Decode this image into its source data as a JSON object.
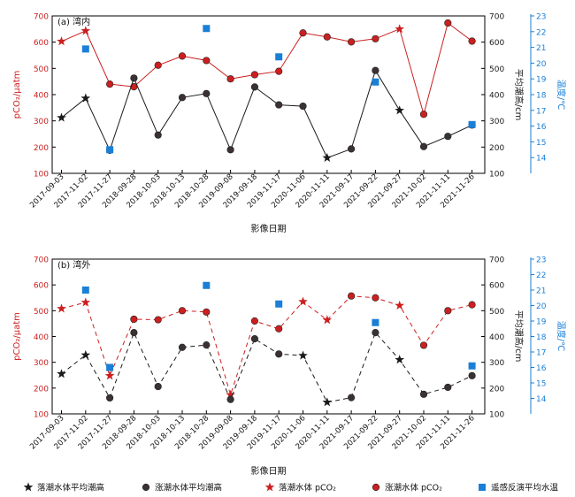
{
  "figure": {
    "colors": {
      "red": "#cc1f1f",
      "black": "#1a1a1a",
      "blue": "#1a7fd6",
      "dark_marker": "#3a3232",
      "axis": "#000000"
    },
    "legend": [
      {
        "key": "star_black",
        "label": "落潮水体平均潮高",
        "marker": "star",
        "color": "#1a1a1a"
      },
      {
        "key": "dot_black",
        "label": "涨潮水体平均潮高",
        "marker": "circle",
        "color": "#3a3232"
      },
      {
        "key": "star_red",
        "label": "落潮水体 pCO₂",
        "marker": "star",
        "color": "#cc1f1f"
      },
      {
        "key": "dot_red",
        "label": "涨潮水体 pCO₂",
        "marker": "circle",
        "color": "#cc1f1f"
      },
      {
        "key": "square_blue",
        "label": "遥感反演平均水温",
        "marker": "square",
        "color": "#1a7fd6"
      }
    ]
  },
  "chart_data": [
    {
      "type": "line",
      "panel_label": "(a) 湾内",
      "xlabel": "影像日期",
      "ylabel_left": "pCO₂/μatm",
      "ylabel_right1": "平均潮高/cm",
      "ylabel_right2": "温度/℃",
      "line_style": "solid",
      "categories": [
        "2017-09-03",
        "2017-11-02",
        "2017-11-27",
        "2018-09-28",
        "2018-10-03",
        "2018-10-13",
        "2018-10-28",
        "2019-09-08",
        "2019-09-18",
        "2019-11-17",
        "2020-11-06",
        "2020-11-11",
        "2021-09-17",
        "2021-09-22",
        "2021-09-27",
        "2021-10-02",
        "2021-11-11",
        "2021-11-26"
      ],
      "ylim_left": [
        100,
        700
      ],
      "yticks_left": [
        100,
        200,
        300,
        400,
        500,
        600,
        700
      ],
      "ylim_right1": [
        100,
        700
      ],
      "yticks_right1": [
        100,
        200,
        300,
        400,
        500,
        600,
        700
      ],
      "ylim_right2": [
        13,
        23
      ],
      "yticks_right2": [
        14,
        15,
        16,
        17,
        18,
        19,
        20,
        21,
        22,
        23
      ],
      "series": [
        {
          "key": "pco2",
          "name": "pCO₂",
          "axis": "left",
          "color": "#cc1f1f",
          "values": [
            603,
            643,
            440,
            430,
            512,
            547,
            530,
            460,
            476,
            489,
            635,
            620,
            601,
            613,
            650,
            325,
            673,
            604
          ],
          "markers": [
            "star",
            "star",
            "dot",
            "dot",
            "dot",
            "dot",
            "dot",
            "dot",
            "dot",
            "dot",
            "dot",
            "dot",
            "dot",
            "dot",
            "star",
            "dot",
            "dot",
            "dot"
          ]
        },
        {
          "key": "tide",
          "name": "平均潮高",
          "axis": "right1",
          "color": "#1a1a1a",
          "values": [
            312,
            386,
            188,
            463,
            246,
            389,
            404,
            190,
            429,
            361,
            356,
            159,
            193,
            492,
            340,
            202,
            241,
            284
          ],
          "markers": [
            "star",
            "star",
            "dot",
            "dot",
            "dot",
            "dot",
            "dot",
            "dot",
            "dot",
            "dot",
            "dot",
            "star",
            "dot",
            "dot",
            "star",
            "dot",
            "dot",
            "dot"
          ]
        },
        {
          "key": "temp",
          "name": "水温",
          "axis": "right2",
          "color": "#1a7fd6",
          "points": [
            {
              "x": "2017-11-02",
              "y": 20.9
            },
            {
              "x": "2017-11-27",
              "y": 14.5
            },
            {
              "x": "2018-10-28",
              "y": 22.2
            },
            {
              "x": "2019-11-17",
              "y": 20.4
            },
            {
              "x": "2021-09-22",
              "y": 18.8
            },
            {
              "x": "2021-11-26",
              "y": 16.1
            }
          ]
        }
      ]
    },
    {
      "type": "line",
      "panel_label": "(b) 湾外",
      "xlabel": "影像日期",
      "ylabel_left": "pCO₂/μatm",
      "ylabel_right1": "平均潮高/cm",
      "ylabel_right2": "温度/℃",
      "line_style": "dashed",
      "categories": [
        "2017-09-03",
        "2017-11-02",
        "2017-11-27",
        "2018-09-28",
        "2018-10-03",
        "2018-10-13",
        "2018-10-28",
        "2019-09-08",
        "2019-09-18",
        "2019-11-17",
        "2020-11-06",
        "2020-11-11",
        "2021-09-17",
        "2021-09-22",
        "2021-09-27",
        "2021-10-02",
        "2021-11-11",
        "2021-11-26"
      ],
      "ylim_left": [
        100,
        700
      ],
      "yticks_left": [
        100,
        200,
        300,
        400,
        500,
        600,
        700
      ],
      "ylim_right1": [
        100,
        700
      ],
      "yticks_right1": [
        100,
        200,
        300,
        400,
        500,
        600,
        700
      ],
      "ylim_right2": [
        13,
        23
      ],
      "yticks_right2": [
        14,
        15,
        16,
        17,
        18,
        19,
        20,
        21,
        22,
        23
      ],
      "series": [
        {
          "key": "pco2",
          "name": "pCO₂",
          "axis": "left",
          "color": "#cc1f1f",
          "values": [
            508,
            532,
            248,
            467,
            465,
            500,
            495,
            174,
            460,
            430,
            535,
            464,
            557,
            550,
            520,
            366,
            500,
            523
          ],
          "markers": [
            "star",
            "star",
            "star",
            "dot",
            "dot",
            "dot",
            "dot",
            "star",
            "dot",
            "dot",
            "star",
            "star",
            "dot",
            "dot",
            "star",
            "dot",
            "dot",
            "dot"
          ]
        },
        {
          "key": "tide",
          "name": "平均潮高",
          "axis": "right1",
          "color": "#1a1a1a",
          "values": [
            255,
            328,
            162,
            415,
            206,
            358,
            367,
            156,
            391,
            332,
            326,
            145,
            163,
            415,
            310,
            176,
            203,
            248
          ],
          "markers": [
            "star",
            "star",
            "dot",
            "dot",
            "dot",
            "dot",
            "dot",
            "dot",
            "dot",
            "dot",
            "star",
            "star",
            "dot",
            "dot",
            "star",
            "dot",
            "dot",
            "dot"
          ]
        },
        {
          "key": "temp",
          "name": "水温",
          "axis": "right2",
          "color": "#1a7fd6",
          "points": [
            {
              "x": "2017-11-02",
              "y": 21.0
            },
            {
              "x": "2017-11-27",
              "y": 16.0
            },
            {
              "x": "2018-10-28",
              "y": 21.3
            },
            {
              "x": "2019-11-17",
              "y": 20.1
            },
            {
              "x": "2021-09-22",
              "y": 18.9
            },
            {
              "x": "2021-11-26",
              "y": 16.1
            }
          ]
        }
      ]
    }
  ]
}
